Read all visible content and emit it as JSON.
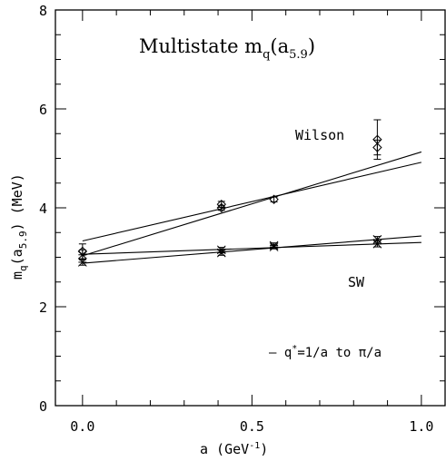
{
  "chart_data": {
    "type": "scatter",
    "title": "Multistate m",
    "title_sub": "q",
    "title_paren": "(a",
    "title_paren_sub": "5.9",
    "title_close": ")",
    "ylabel_main": "m",
    "ylabel_sub_q": "q",
    "ylabel_paren": "(a",
    "ylabel_sub_a": "5.9",
    "ylabel_tail": ") (MeV)",
    "xlabel_main": "a (GeV",
    "xlabel_sup": "-1",
    "xlabel_tail": ")",
    "xlim": [
      -0.08,
      1.07
    ],
    "ylim": [
      0,
      8
    ],
    "xticks": [
      0.0,
      0.5,
      1.0
    ],
    "xtick_labels": [
      "0.0",
      "0.5",
      "1.0"
    ],
    "yticks": [
      0,
      2,
      4,
      6,
      8
    ],
    "ytick_labels": [
      "0",
      "2",
      "4",
      "6",
      "8"
    ],
    "grid": false,
    "annotations": {
      "wilson": "Wilson",
      "sw": "SW",
      "legend_prefix": "– q",
      "legend_sup": "*",
      "legend_tail": "=1/a to π/a"
    },
    "series": [
      {
        "marker": "diamond",
        "points": [
          {
            "x": 0.0,
            "y": 3.12,
            "err": 0.15
          },
          {
            "x": 0.41,
            "y": 4.07,
            "err": 0.06
          },
          {
            "x": 0.41,
            "y": 4.0,
            "err": 0.05
          },
          {
            "x": 0.565,
            "y": 4.17,
            "err": 0.05
          },
          {
            "x": 0.87,
            "y": 5.38,
            "err": 0.4
          },
          {
            "x": 0.87,
            "y": 5.22,
            "err": 0.15
          }
        ]
      },
      {
        "marker": "asterisk",
        "points": [
          {
            "x": 0.0,
            "y": 3.05,
            "err": 0.1
          },
          {
            "x": 0.0,
            "y": 2.9,
            "err": 0.06
          },
          {
            "x": 0.41,
            "y": 3.15,
            "err": 0.05
          },
          {
            "x": 0.41,
            "y": 3.09,
            "err": 0.05
          },
          {
            "x": 0.565,
            "y": 3.24,
            "err": 0.05
          },
          {
            "x": 0.565,
            "y": 3.21,
            "err": 0.04
          },
          {
            "x": 0.87,
            "y": 3.36,
            "err": 0.06
          },
          {
            "x": 0.87,
            "y": 3.27,
            "err": 0.06
          }
        ]
      }
    ],
    "fit_lines": [
      {
        "x": [
          0,
          1
        ],
        "y": [
          3.33,
          4.92
        ]
      },
      {
        "x": [
          0,
          1
        ],
        "y": [
          3.03,
          5.13
        ]
      },
      {
        "x": [
          0,
          1
        ],
        "y": [
          3.06,
          3.3
        ]
      },
      {
        "x": [
          0,
          1
        ],
        "y": [
          2.88,
          3.43
        ]
      }
    ]
  }
}
